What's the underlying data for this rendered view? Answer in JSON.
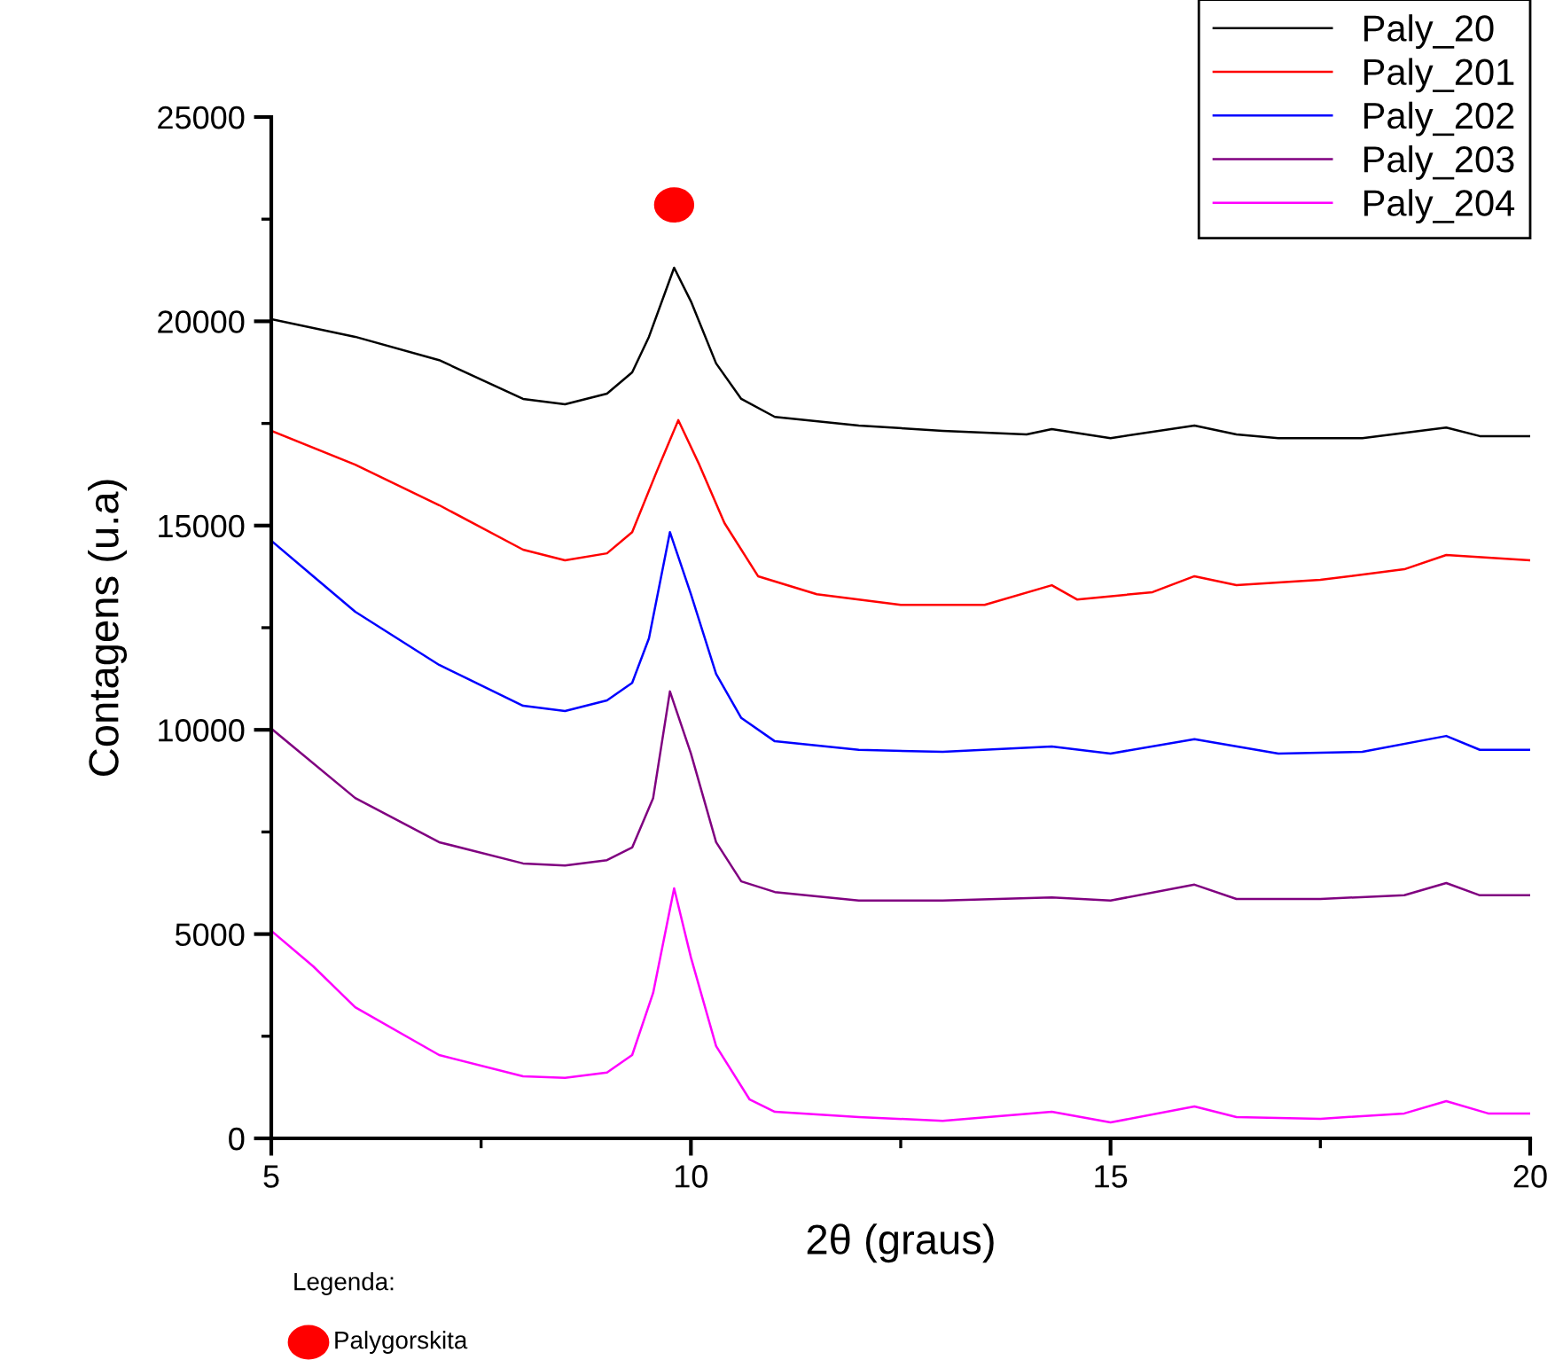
{
  "chart_data": {
    "type": "line",
    "xlabel": "2θ (graus)",
    "ylabel": "Contagens (u.a)",
    "xlim": [
      5,
      20
    ],
    "xticks": [
      5,
      10,
      15,
      20
    ],
    "ylim": [
      0,
      25000
    ],
    "yticks": [
      0,
      5000,
      10000,
      15000,
      20000,
      25000
    ],
    "grid": false,
    "legend": "top right",
    "marker": "none",
    "line_style": "solid",
    "annotations": [
      "Legenda:",
      "Palygorskita"
    ],
    "series": [
      {
        "name": "Paly_20",
        "color": "#000000",
        "x": [
          5,
          6,
          7,
          8,
          8.5,
          9,
          9.3,
          9.5,
          9.8,
          10.0,
          10.3,
          10.6,
          11,
          12,
          13,
          14,
          14.3,
          15,
          16,
          16.5,
          17,
          18,
          19,
          19.4,
          20
        ],
        "values": [
          20050,
          19620,
          19050,
          18100,
          17970,
          18230,
          18750,
          19620,
          21310,
          20490,
          18970,
          18100,
          17660,
          17450,
          17320,
          17230,
          17360,
          17140,
          17450,
          17230,
          17140,
          17140,
          17400,
          17190,
          17190
        ]
      },
      {
        "name": "Paly_201",
        "color": "#ff0000",
        "x": [
          5,
          6,
          7,
          8,
          8.5,
          9,
          9.3,
          9.6,
          9.85,
          10.1,
          10.4,
          10.8,
          11.5,
          12.5,
          13.5,
          14.3,
          14.6,
          15.5,
          16,
          16.5,
          17.5,
          18.5,
          19,
          20
        ],
        "values": [
          17320,
          16490,
          15500,
          14410,
          14150,
          14320,
          14840,
          16360,
          17580,
          16490,
          15060,
          13760,
          13320,
          13060,
          13060,
          13540,
          13190,
          13370,
          13760,
          13540,
          13670,
          13930,
          14280,
          14150
        ]
      },
      {
        "name": "Paly_202",
        "color": "#0000ff",
        "x": [
          5,
          5.5,
          6,
          7,
          8,
          8.5,
          9,
          9.3,
          9.5,
          9.75,
          10.0,
          10.3,
          10.6,
          11,
          12,
          13,
          14.3,
          15,
          16,
          17,
          18,
          19,
          19.4,
          20
        ],
        "values": [
          14630,
          13760,
          12890,
          11590,
          10590,
          10460,
          10720,
          11150,
          12240,
          14840,
          13320,
          11370,
          10290,
          9720,
          9510,
          9460,
          9590,
          9420,
          9770,
          9420,
          9460,
          9850,
          9510,
          9510
        ]
      },
      {
        "name": "Paly_203",
        "color": "#800080",
        "x": [
          5,
          6,
          7,
          8,
          8.5,
          9,
          9.3,
          9.55,
          9.75,
          10.0,
          10.3,
          10.6,
          11,
          12,
          13,
          14.3,
          15,
          16,
          16.5,
          17.5,
          18.5,
          19,
          19.4,
          20
        ],
        "values": [
          10030,
          8330,
          7250,
          6730,
          6680,
          6810,
          7120,
          8330,
          10940,
          9420,
          7250,
          6290,
          6030,
          5820,
          5820,
          5900,
          5820,
          6210,
          5860,
          5860,
          5950,
          6250,
          5950,
          5950
        ]
      },
      {
        "name": "Paly_204",
        "color": "#ff00ff",
        "x": [
          5,
          5.5,
          6,
          7,
          8,
          8.5,
          9,
          9.3,
          9.55,
          9.8,
          10.0,
          10.3,
          10.7,
          11,
          12,
          13,
          14.3,
          15,
          16,
          16.5,
          17.5,
          18.5,
          19,
          19.5,
          20
        ],
        "values": [
          5080,
          4210,
          3210,
          2040,
          1520,
          1480,
          1610,
          2040,
          3560,
          6120,
          4430,
          2260,
          950,
          650,
          520,
          430,
          650,
          390,
          780,
          520,
          480,
          610,
          910,
          610,
          610
        ]
      }
    ]
  }
}
